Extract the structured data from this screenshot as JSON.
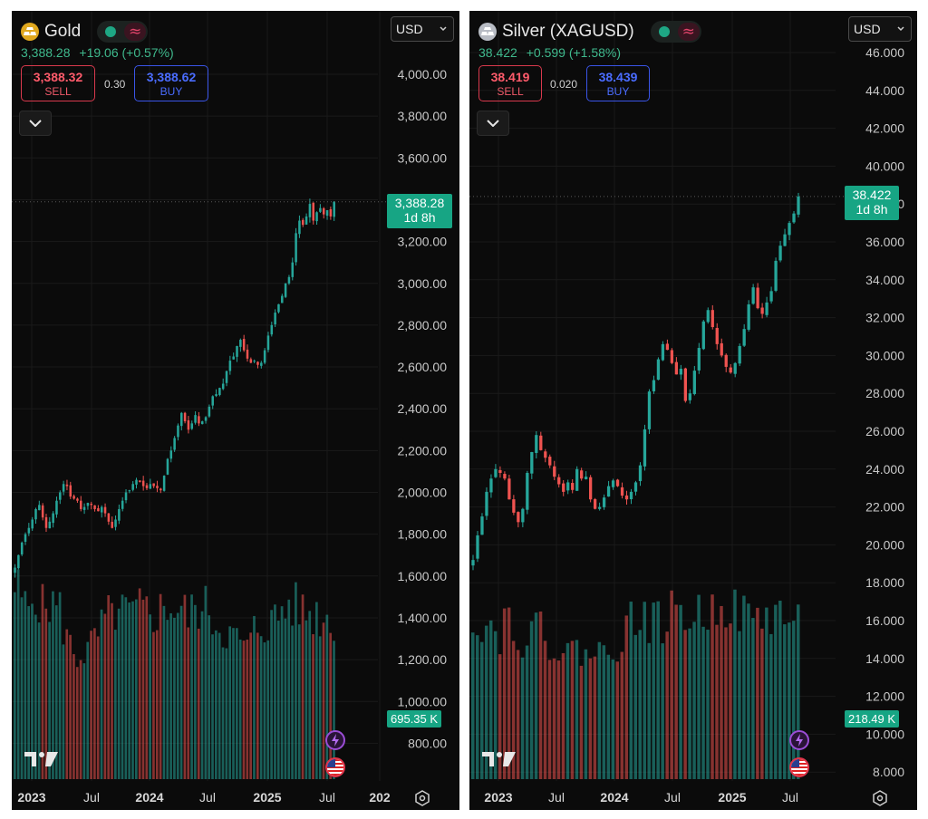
{
  "colors": {
    "up": "#26a69a",
    "down": "#ef5350",
    "axis_text": "#c8c8c8",
    "grid": "#1a1a1a",
    "price_tag": "#17a584"
  },
  "panels": [
    {
      "symbol": "Gold",
      "icon": "gold-bars-icon",
      "price": "3,388.28",
      "change": "+19.06 (+0.57%)",
      "sell_value": "3,388.32",
      "sell_label": "SELL",
      "spread": "0.30",
      "buy_value": "3,388.62",
      "buy_label": "BUY",
      "currency": "USD",
      "last_price_tag": "3,388.28",
      "countdown": "1d 8h",
      "volume_tag": "695.35 K",
      "axis_labels": [
        "4,000.00",
        "3,800.00",
        "3,600.00",
        "3,400.00",
        "3,200.00",
        "3,000.00",
        "2,800.00",
        "2,600.00",
        "2,400.00",
        "2,200.00",
        "2,000.00",
        "1,800.00",
        "1,600.00",
        "1,400.00",
        "1,200.00",
        "1,000.00",
        "800.00"
      ],
      "time_labels": [
        "2023",
        "Jul",
        "2024",
        "Jul",
        "2025",
        "Jul",
        "202"
      ]
    },
    {
      "symbol": "Silver (XAGUSD)",
      "icon": "silver-bars-icon",
      "price": "38.422",
      "change": "+0.599 (+1.58%)",
      "sell_value": "38.419",
      "sell_label": "SELL",
      "spread": "0.020",
      "buy_value": "38.439",
      "buy_label": "BUY",
      "currency": "USD",
      "last_price_tag": "38.422",
      "countdown": "1d 8h",
      "volume_tag": "218.49 K",
      "axis_labels": [
        "46.000",
        "44.000",
        "42.000",
        "40.000",
        "38.000",
        "36.000",
        "34.000",
        "32.000",
        "30.000",
        "28.000",
        "26.000",
        "24.000",
        "22.000",
        "20.000",
        "18.000",
        "16.000",
        "14.000",
        "12.000",
        "10.000",
        "8.000"
      ],
      "time_labels": [
        "2023",
        "Jul",
        "2024",
        "Jul",
        "2025",
        "Jul"
      ]
    }
  ],
  "chart_data": [
    {
      "type": "candlestick",
      "title": "Gold",
      "interval": "weekly",
      "ylim": [
        700,
        4100
      ],
      "x_range": [
        "2022-11",
        "2025-07"
      ],
      "price_path": [
        1640,
        1700,
        1760,
        1800,
        1830,
        1870,
        1920,
        1940,
        1880,
        1830,
        1860,
        1900,
        1960,
        2000,
        2040,
        2030,
        1980,
        1970,
        1960,
        1920,
        1930,
        1950,
        1940,
        1920,
        1910,
        1930,
        1900,
        1860,
        1830,
        1870,
        1920,
        1960,
        2000,
        2010,
        2040,
        2060,
        2050,
        2030,
        2020,
        2040,
        2030,
        2020,
        2010,
        2080,
        2160,
        2200,
        2260,
        2320,
        2380,
        2340,
        2300,
        2330,
        2370,
        2330,
        2340,
        2360,
        2410,
        2460,
        2470,
        2500,
        2520,
        2580,
        2630,
        2650,
        2700,
        2730,
        2680,
        2640,
        2620,
        2630,
        2610,
        2620,
        2680,
        2750,
        2800,
        2860,
        2900,
        2940,
        3000,
        3030,
        3100,
        3240,
        3300,
        3280,
        3320,
        3380,
        3300,
        3340,
        3360,
        3330,
        3350,
        3320,
        3390
      ],
      "volume_path": [
        1330,
        1300,
        1250,
        1190,
        1180,
        1260,
        1330,
        1210,
        1180,
        1200,
        1230,
        1210,
        1200,
        1170,
        1060,
        1000,
        920,
        880,
        850,
        870,
        880,
        900,
        920,
        960,
        1000,
        1050,
        1100,
        1120,
        1130,
        1160,
        1150,
        1140,
        1180,
        1130,
        1150,
        1140,
        1170,
        1180,
        1160,
        1150,
        1140,
        1160,
        1170,
        1180,
        1210,
        1190,
        1180,
        1170,
        1170,
        1150,
        1130,
        1160,
        1170,
        1190,
        1140,
        1180,
        1200,
        1110,
        1090,
        1050,
        1040,
        1020,
        1000,
        980,
        960,
        920,
        960,
        900,
        950,
        1030,
        1050,
        1060,
        1070,
        1080,
        1090,
        1110,
        1130,
        1180,
        1190,
        1200,
        1210,
        1190,
        1180,
        1170,
        1160,
        1150,
        1140,
        1150,
        1130,
        1120,
        1110,
        1100,
        1090
      ]
    },
    {
      "type": "candlestick",
      "title": "Silver (XAGUSD)",
      "interval": "weekly",
      "ylim": [
        7.2,
        47.2
      ],
      "x_range": [
        "2022-11",
        "2025-07"
      ],
      "price_path": [
        19.2,
        20.5,
        21.5,
        22.8,
        23.5,
        24.0,
        23.8,
        23.5,
        22.4,
        21.7,
        21.2,
        21.9,
        23.8,
        24.9,
        25.8,
        25.0,
        24.6,
        24.2,
        23.6,
        23.2,
        22.8,
        23.3,
        22.9,
        24.0,
        23.5,
        23.6,
        22.4,
        21.9,
        22.0,
        22.5,
        23.1,
        23.4,
        23.1,
        22.6,
        22.4,
        22.8,
        23.3,
        24.2,
        26.1,
        28.1,
        28.7,
        29.8,
        30.6,
        30.3,
        29.6,
        29.0,
        29.3,
        27.6,
        28.0,
        29.2,
        30.4,
        31.8,
        32.4,
        31.5,
        30.6,
        30.0,
        29.4,
        29.1,
        29.6,
        30.5,
        31.4,
        32.7,
        33.6,
        32.5,
        32.2,
        32.8,
        33.4,
        35.0,
        35.8,
        36.4,
        37.0,
        37.5,
        38.4
      ],
      "volume_path": [
        13500,
        13200,
        12800,
        12500,
        12300,
        12100,
        11800,
        12600,
        13300,
        12500,
        12100,
        11500,
        11600,
        11900,
        11700,
        12400,
        11800,
        11300,
        10800,
        10500,
        10300,
        10100,
        10200,
        10400,
        10500,
        10300,
        10200,
        10100,
        10000,
        10400,
        10700,
        10900,
        11100,
        11800,
        12200,
        12700,
        12900,
        13100,
        13200,
        12800,
        12700,
        12500,
        12700,
        13000,
        13300,
        13500,
        13700,
        13400,
        13200,
        13000,
        13100,
        13300,
        13500,
        13800,
        14200,
        15500,
        14300,
        13900,
        13600,
        13400,
        13100,
        13000,
        12900,
        12800,
        13200,
        13400,
        13300,
        13500,
        13200,
        13100,
        12900,
        12700,
        12500
      ]
    }
  ]
}
